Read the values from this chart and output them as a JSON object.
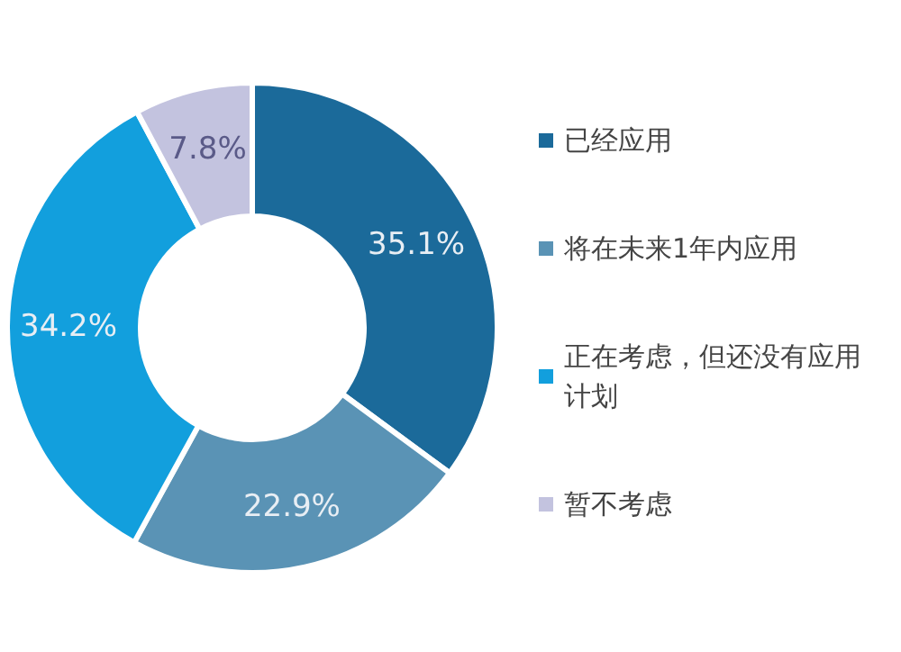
{
  "chart_data": {
    "type": "donut",
    "categories": [
      "已经应用",
      "将在未来1年内应用",
      "正在考虑，但还没有应用计划",
      "暂不考虑"
    ],
    "values": [
      35.1,
      22.9,
      34.2,
      7.8
    ],
    "colors": [
      "#1b6a9a",
      "#5a93b5",
      "#129fdd",
      "#c3c3df"
    ],
    "value_labels": [
      "35.1%",
      "22.9%",
      "34.2%",
      "7.8%"
    ],
    "legend": "right"
  }
}
